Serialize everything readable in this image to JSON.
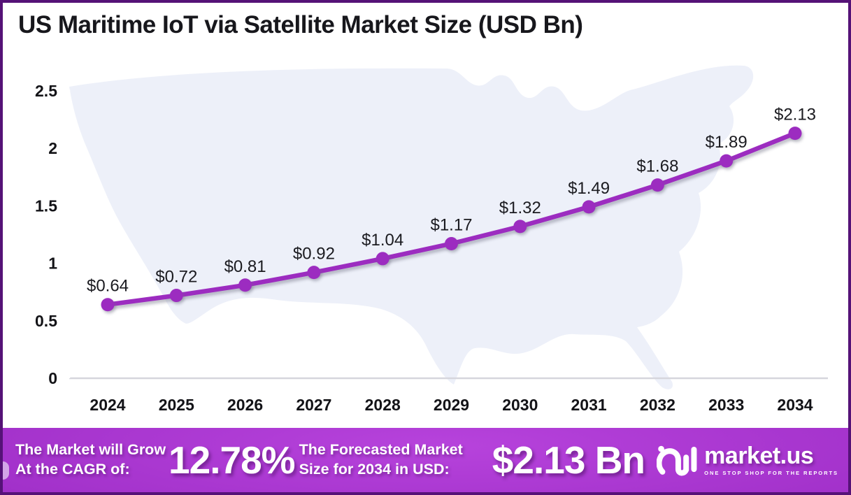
{
  "title": "US Maritime IoT via Satellite Market Size (USD Bn)",
  "chart_data": {
    "type": "line",
    "title": "US Maritime IoT via Satellite Market Size (USD Bn)",
    "x": [
      2024,
      2025,
      2026,
      2027,
      2028,
      2029,
      2030,
      2031,
      2032,
      2033,
      2034
    ],
    "series": [
      {
        "name": "Market Size (USD Bn)",
        "values": [
          0.64,
          0.72,
          0.81,
          0.92,
          1.04,
          1.17,
          1.32,
          1.49,
          1.68,
          1.89,
          2.13
        ]
      }
    ],
    "point_labels": [
      "$0.64",
      "$0.72",
      "$0.81",
      "$0.92",
      "$1.04",
      "$1.17",
      "$1.32",
      "$1.49",
      "$1.68",
      "$1.89",
      "$2.13"
    ],
    "xlabel": "",
    "ylabel": "",
    "ylim": [
      0,
      2.5
    ],
    "yticks": [
      0,
      0.5,
      1,
      1.5,
      2,
      2.5
    ],
    "ytick_labels": [
      "0",
      "0.5",
      "1",
      "1.5",
      "2",
      "2.5"
    ],
    "minor_tick_step": 0.1,
    "grid": false,
    "legend": "none",
    "line_color": "#9c2cc0",
    "marker_color": "#9c2cc0",
    "background": "us-map-silhouette",
    "map_fill": "#edf0f9"
  },
  "footer": {
    "cagr_label_line1": "The Market will Grow",
    "cagr_label_line2": "At the CAGR of:",
    "cagr_value": "12.78%",
    "forecast_label_line1": "The Forecasted Market",
    "forecast_label_line2": "Size for 2034 in USD:",
    "forecast_value": "$2.13 Bn",
    "logo_text": "market.us",
    "logo_tagline": "ONE STOP SHOP FOR THE REPORTS"
  },
  "colors": {
    "accent": "#9c2cc0",
    "frame_border": "#551277",
    "footer_gradient_start": "#b743dc",
    "footer_gradient_end": "#4d0e66",
    "baseline": "#d6d6dd",
    "axis_white": "#ffffff",
    "title_color": "#17171c"
  }
}
